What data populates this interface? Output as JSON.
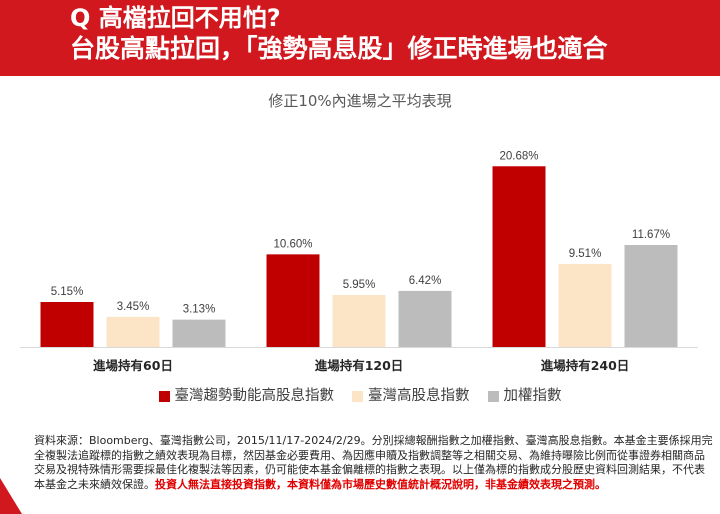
{
  "header": {
    "title_line1": "Q 高檔拉回不用怕?",
    "title_line2": "台股高點拉回，「強勢高息股」修正時進場也適合"
  },
  "colors": {
    "header_bg": "#d1181f",
    "disclaimer_text": "#e00000"
  },
  "chart_data": {
    "type": "bar",
    "title": "修正10%內進場之平均表現",
    "categories": [
      "進場持有60日",
      "進場持有120日",
      "進場持有240日"
    ],
    "series": [
      {
        "name": "臺灣趨勢動能高股息指數",
        "values": [
          5.15,
          10.6,
          20.68
        ],
        "labels": [
          "5.15%",
          "10.60%",
          "20.68%"
        ],
        "color": "#c00000"
      },
      {
        "name": "臺灣高股息指數",
        "values": [
          3.45,
          5.95,
          9.51
        ],
        "labels": [
          "3.45%",
          "5.95%",
          "9.51%"
        ],
        "color": "#fce4c6"
      },
      {
        "name": "加權指數",
        "values": [
          3.13,
          6.42,
          11.67
        ],
        "labels": [
          "3.13%",
          "6.42%",
          "11.67%"
        ],
        "color": "#bcbcbc"
      }
    ],
    "ylim": [
      0,
      23
    ],
    "grid": false,
    "legend": "bottom"
  },
  "footnote": {
    "text": "資料來源：Bloomberg、臺灣指數公司，2015/11/17-2024/2/29。分別採總報酬指數之加權指數、臺灣高股息指數。本基金主要係採用完全複製法追蹤標的指數之績效表現為目標，然因基金必要費用、為因應申贖及指數調整等之相關交易、為維持曝險比例而從事證券相關商品交易及視特殊情形需要採最佳化複製法等因素，仍可能使本基金偏離標的指數之表現。以上僅為標的指數成分股歷史資料回測結果，不代表本基金之未來績效保證。",
    "disclaimer": "投資人無法直接投資指數，本資料僅為市場歷史數值統計概況說明，非基金績效表現之預測。"
  }
}
